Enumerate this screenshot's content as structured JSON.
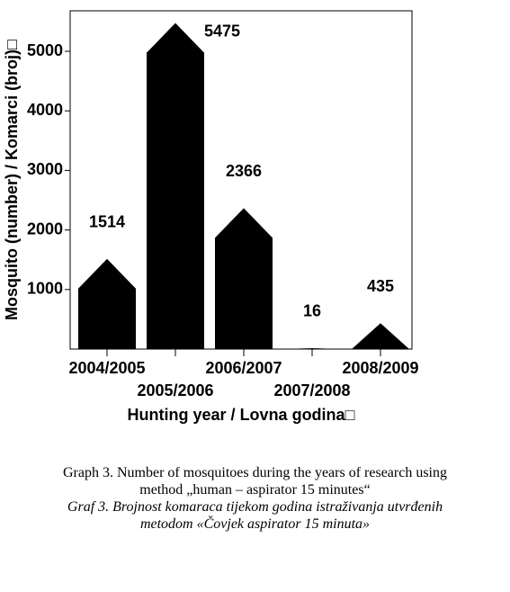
{
  "chart_data": {
    "type": "pyramid-bar",
    "y_label": "Mosquito (number) / Komarci (broj)□",
    "x_label": "Hunting year / Lovna godina□",
    "categories": [
      "2004/2005",
      "2005/2006",
      "2006/2007",
      "2007/2008",
      "2008/2009"
    ],
    "values": [
      1514,
      5475,
      2366,
      16,
      435
    ],
    "color": "#000000",
    "ylim": [
      0,
      5680
    ],
    "yticks": [
      1000,
      2000,
      3000,
      4000,
      5000
    ],
    "grid": false
  },
  "caption": {
    "english": [
      "Graph 3. Number of mosquitoes during the years of research using",
      "method „human – aspirator 15 minutes“"
    ],
    "croatian": [
      "Graf 3. Brojnost komaraca tijekom godina istraživanja utvrđenih",
      "metodom «Čovjek aspirator 15 minuta»"
    ]
  }
}
